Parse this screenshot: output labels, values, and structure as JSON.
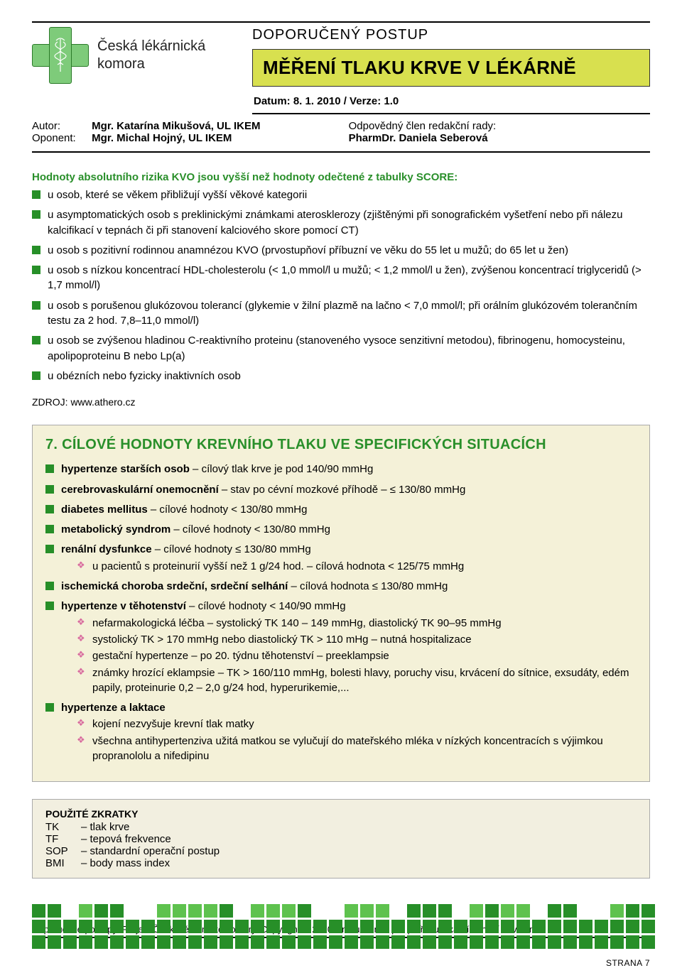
{
  "org_name_l1": "Česká lékárnická",
  "org_name_l2": "komora",
  "doc_type": "DOPORUČENÝ POSTUP",
  "title": "MĚŘENÍ TLAKU KRVE V LÉKÁRNĚ",
  "date_line": "Datum: 8. 1. 2010 / Verze: 1.0",
  "meta_author_lbl": "Autor:",
  "meta_author": "Mgr. Katarína Mikušová, UL IKEM",
  "meta_oponent_lbl": "Oponent:",
  "meta_oponent": "Mgr. Michal Hojný, UL IKEM",
  "meta_resp_lbl": "Odpovědný člen redakční rady:",
  "meta_resp": "PharmDr. Daniela Seberová",
  "intro": "Hodnoty absolutního rizika KVO jsou vyšší než hodnoty odečtené z tabulky SCORE:",
  "list1": [
    "u osob, které se věkem přibližují vyšší věkové kategorii",
    "u asymptomatických osob s preklinickými známkami aterosklerozy (zjištěnými při sonografickém vyšetření nebo při nálezu kalcifikací v tepnách či při stanovení kalciového skore pomocí CT)",
    "u osob s pozitivní rodinnou anamnézou KVO (prvostupňoví příbuzní ve věku do 55 let u mužů; do 65 let u žen)",
    "u osob s nízkou koncentrací HDL-cholesterolu (< 1,0 mmol/l u mužů; < 1,2 mmol/l u žen), zvýšenou koncentrací triglyceridů (> 1,7 mmol/l)",
    "u osob s porušenou glukózovou tolerancí (glykemie v žilní plazmě na lačno < 7,0 mmol/l; při orálním glukózovém tolerančním testu za 2 hod. 7,8–11,0 mmol/l)",
    "u osob se zvýšenou hladinou C-reaktivního proteinu (stanoveného vysoce senzitivní metodou), fibrinogenu, homocysteinu, apolipoproteinu B nebo Lp(a)",
    "u obézních nebo fyzicky inaktivních osob"
  ],
  "source": "ZDROJ: www.athero.cz",
  "section7_title": "7. CÍLOVÉ HODNOTY KREVNÍHO TLAKU VE SPECIFICKÝCH SITUACÍCH",
  "section7": [
    {
      "b": "hypertenze starších osob",
      "t": " – cílový tlak krve je pod 140/90 mmHg"
    },
    {
      "b": "cerebrovaskulární onemocnění",
      "t": " – stav po cévní mozkové příhodě – ≤ 130/80 mmHg"
    },
    {
      "b": "diabetes mellitus",
      "t": " – cílové hodnoty < 130/80 mmHg"
    },
    {
      "b": "metabolický syndrom",
      "t": " – cílové hodnoty < 130/80 mmHg"
    },
    {
      "b": "renální dysfunkce",
      "t": " – cílové hodnoty ≤ 130/80 mmHg",
      "sub": [
        "u pacientů s proteinurií vyšší než 1 g/24 hod. – cílová hodnota < 125/75 mmHg"
      ]
    },
    {
      "b": "ischemická choroba srdeční, srdeční selhání",
      "t": " – cílová hodnota ≤ 130/80 mmHg"
    },
    {
      "b": "hypertenze v těhotenství",
      "t": " – cílové hodnoty < 140/90 mmHg",
      "sub": [
        "nefarmakologická léčba – systolický TK 140 – 149 mmHg, diastolický TK 90–95 mmHg",
        "systolický TK > 170 mmHg nebo diastolický TK > 110 mHg – nutná hospitalizace",
        "gestační hypertenze – po 20. týdnu těhotenství – preeklampsie",
        "známky hrozící eklampsie – TK > 160/110 mmHg, bolesti hlavy, poruchy visu, krvácení do sítnice, exsudáty, edém papily, proteinurie 0,2 – 2,0 g/24 hod, hyperurikemie,..."
      ]
    },
    {
      "b": "hypertenze a laktace",
      "t": "",
      "sub": [
        "kojení nezvyšuje krevní tlak matky",
        "všechna antihypertenziva užitá matkou se vylučují do mateřského mléka v nízkých koncentracích s výjimkou propranololu a nifedipinu"
      ]
    }
  ],
  "abbrev_title": "POUŽITÉ ZKRATKY",
  "abbrev": [
    {
      "k": "TK",
      "v": "tlak krve"
    },
    {
      "k": "TF",
      "v": "tepová frekvence"
    },
    {
      "k": "SOP",
      "v": "standardní operační postup"
    },
    {
      "k": "BMI",
      "v": "body mass index"
    }
  ],
  "footer": "Doporučené postupy. Projekt České lékárnické komory. Copyright © 2010 Jiné užití než pro potřebu lékárníků není dovoleno.",
  "page_num": "STRANA 7",
  "colors": {
    "green": "#278f28",
    "lightgreen": "#5ec24e",
    "grey": "#b9b9b9",
    "lightgrey": "#d9d9d9",
    "yellow": "#d8e04f"
  },
  "square_rows": [
    {
      "y": 0,
      "cells": [
        [
          0,
          "g"
        ],
        [
          1,
          "g"
        ],
        [
          3,
          "l"
        ],
        [
          4,
          "g"
        ],
        [
          5,
          "g"
        ],
        [
          8,
          "l"
        ],
        [
          9,
          "l"
        ],
        [
          10,
          "l"
        ],
        [
          11,
          "l"
        ],
        [
          12,
          "g"
        ],
        [
          14,
          "l"
        ],
        [
          15,
          "l"
        ],
        [
          16,
          "l"
        ],
        [
          17,
          "g"
        ],
        [
          20,
          "l"
        ],
        [
          21,
          "l"
        ],
        [
          22,
          "l"
        ],
        [
          24,
          "g"
        ],
        [
          25,
          "g"
        ],
        [
          26,
          "g"
        ],
        [
          28,
          "l"
        ],
        [
          29,
          "g"
        ],
        [
          30,
          "l"
        ],
        [
          31,
          "l"
        ],
        [
          33,
          "g"
        ],
        [
          34,
          "g"
        ],
        [
          37,
          "l"
        ],
        [
          38,
          "g"
        ],
        [
          39,
          "g"
        ]
      ]
    },
    {
      "y": 1,
      "cells": [
        [
          0,
          "g"
        ],
        [
          1,
          "g"
        ],
        [
          2,
          "g"
        ],
        [
          3,
          "g"
        ],
        [
          4,
          "g"
        ],
        [
          5,
          "g"
        ],
        [
          6,
          "g"
        ],
        [
          7,
          "g"
        ],
        [
          8,
          "g"
        ],
        [
          9,
          "g"
        ],
        [
          10,
          "g"
        ],
        [
          11,
          "g"
        ],
        [
          12,
          "g"
        ],
        [
          13,
          "g"
        ],
        [
          14,
          "g"
        ],
        [
          15,
          "g"
        ],
        [
          16,
          "g"
        ],
        [
          17,
          "g"
        ],
        [
          18,
          "g"
        ],
        [
          19,
          "g"
        ],
        [
          20,
          "g"
        ],
        [
          21,
          "g"
        ],
        [
          22,
          "g"
        ],
        [
          23,
          "g"
        ],
        [
          24,
          "g"
        ],
        [
          25,
          "g"
        ],
        [
          26,
          "g"
        ],
        [
          27,
          "g"
        ],
        [
          28,
          "g"
        ],
        [
          29,
          "g"
        ],
        [
          30,
          "g"
        ],
        [
          31,
          "g"
        ],
        [
          32,
          "g"
        ],
        [
          33,
          "g"
        ],
        [
          34,
          "g"
        ],
        [
          35,
          "g"
        ],
        [
          36,
          "g"
        ],
        [
          37,
          "g"
        ],
        [
          38,
          "g"
        ],
        [
          39,
          "g"
        ]
      ]
    },
    {
      "y": 2,
      "cells": [
        [
          0,
          "g"
        ],
        [
          1,
          "g"
        ],
        [
          2,
          "g"
        ],
        [
          3,
          "g"
        ],
        [
          4,
          "g"
        ],
        [
          5,
          "g"
        ],
        [
          6,
          "g"
        ],
        [
          7,
          "g"
        ],
        [
          8,
          "g"
        ],
        [
          9,
          "g"
        ],
        [
          10,
          "g"
        ],
        [
          11,
          "g"
        ],
        [
          12,
          "g"
        ],
        [
          13,
          "g"
        ],
        [
          14,
          "g"
        ],
        [
          15,
          "g"
        ],
        [
          16,
          "g"
        ],
        [
          17,
          "g"
        ],
        [
          18,
          "g"
        ],
        [
          19,
          "g"
        ],
        [
          20,
          "g"
        ],
        [
          21,
          "g"
        ],
        [
          22,
          "g"
        ],
        [
          23,
          "g"
        ],
        [
          24,
          "g"
        ],
        [
          25,
          "g"
        ],
        [
          26,
          "g"
        ],
        [
          27,
          "g"
        ],
        [
          28,
          "g"
        ],
        [
          29,
          "g"
        ],
        [
          30,
          "g"
        ],
        [
          31,
          "g"
        ],
        [
          32,
          "g"
        ],
        [
          33,
          "g"
        ],
        [
          34,
          "g"
        ],
        [
          35,
          "g"
        ],
        [
          36,
          "g"
        ],
        [
          37,
          "g"
        ],
        [
          38,
          "g"
        ],
        [
          39,
          "g"
        ]
      ]
    }
  ]
}
